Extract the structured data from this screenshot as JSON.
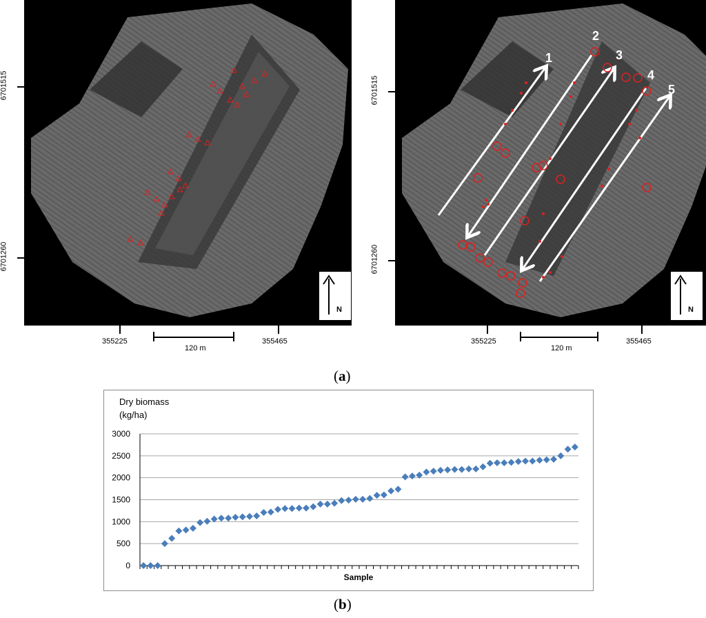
{
  "maps": [
    {
      "id": "left",
      "y_labels": [
        "6701515",
        "6701260"
      ],
      "x_labels": [
        "355225",
        "355465"
      ],
      "scale_label": "120 m",
      "north_label": "N"
    },
    {
      "id": "right",
      "y_labels": [
        "6701515",
        "6701260"
      ],
      "x_labels": [
        "355225",
        "355465"
      ],
      "scale_label": "120 m",
      "north_label": "N",
      "transect_labels": [
        "1",
        "2",
        "3",
        "4",
        "5"
      ]
    }
  ],
  "colors": {
    "map_background": "#000000",
    "sample_marker": "#e02020",
    "transect_arrow": "#ffffff",
    "series_marker": "#4a7ebb",
    "gridline": "#a6a6a6"
  },
  "figure_labels": {
    "a_open": "(",
    "a": "a",
    "a_close": ")",
    "b_open": "(",
    "b": "b",
    "b_close": ")"
  },
  "chart_data": {
    "type": "scatter",
    "ylabel_line1": "Dry biomass",
    "ylabel_line2": "(kg/ha)",
    "xlabel": "Sample",
    "ylim": [
      0,
      3000
    ],
    "yticks": [
      "0",
      "500",
      "1000",
      "1500",
      "2000",
      "2500",
      "3000"
    ],
    "grid": true,
    "marker": "diamond",
    "values": [
      0,
      0,
      0,
      500,
      620,
      790,
      810,
      850,
      980,
      1010,
      1060,
      1080,
      1080,
      1100,
      1110,
      1120,
      1130,
      1210,
      1220,
      1280,
      1300,
      1300,
      1310,
      1310,
      1340,
      1400,
      1400,
      1420,
      1480,
      1490,
      1510,
      1510,
      1530,
      1600,
      1610,
      1700,
      1740,
      2020,
      2040,
      2060,
      2130,
      2150,
      2170,
      2180,
      2190,
      2190,
      2200,
      2200,
      2250,
      2330,
      2340,
      2340,
      2350,
      2370,
      2380,
      2380,
      2400,
      2410,
      2420,
      2500,
      2650,
      2700
    ]
  }
}
